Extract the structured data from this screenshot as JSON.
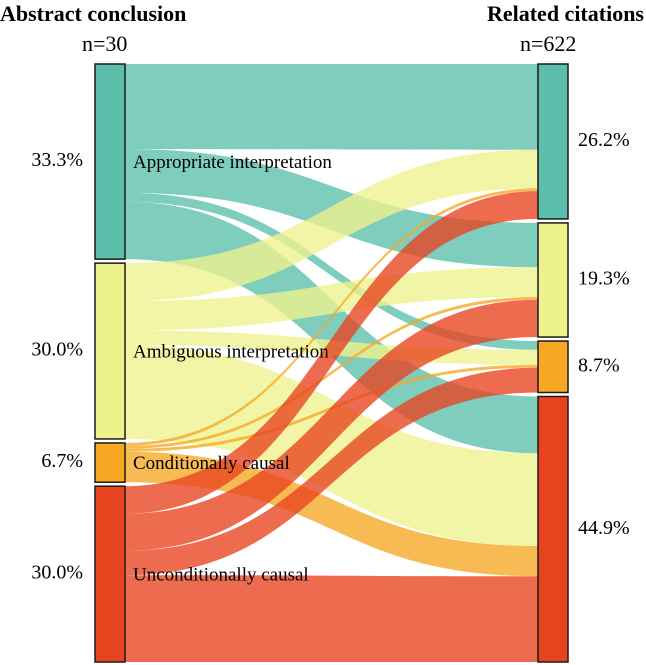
{
  "chart_data": {
    "type": "sankey",
    "left_title": "Abstract conclusion",
    "left_n": "n=30",
    "right_title": "Related citations",
    "right_n": "n=622",
    "categories": [
      "Appropriate interpretation",
      "Ambiguous interpretation",
      "Conditionally causal",
      "Unconditionally causal"
    ],
    "colors": [
      "#5bbfab",
      "#eef28c",
      "#f6a822",
      "#e8431f"
    ],
    "left_nodes": [
      {
        "name": "Appropriate interpretation",
        "share": 33.3,
        "label": "33.3%"
      },
      {
        "name": "Ambiguous interpretation",
        "share": 30.0,
        "label": "30.0%"
      },
      {
        "name": "Conditionally causal",
        "share": 6.7,
        "label": "6.7%"
      },
      {
        "name": "Unconditionally causal",
        "share": 30.0,
        "label": "30.0%"
      }
    ],
    "right_nodes": [
      {
        "name": "Appropriate interpretation",
        "share": 26.2,
        "label": "26.2%"
      },
      {
        "name": "Ambiguous interpretation",
        "share": 19.3,
        "label": "19.3%"
      },
      {
        "name": "Conditionally causal",
        "share": 8.7,
        "label": "8.7%"
      },
      {
        "name": "Unconditionally causal",
        "share": 44.9,
        "label": "44.9%"
      }
    ],
    "flows": [
      {
        "source": 0,
        "target": 0,
        "value": 0.145
      },
      {
        "source": 0,
        "target": 1,
        "value": 0.075
      },
      {
        "source": 0,
        "target": 2,
        "value": 0.015
      },
      {
        "source": 0,
        "target": 3,
        "value": 0.098
      },
      {
        "source": 1,
        "target": 0,
        "value": 0.065
      },
      {
        "source": 1,
        "target": 1,
        "value": 0.05
      },
      {
        "source": 1,
        "target": 2,
        "value": 0.025
      },
      {
        "source": 1,
        "target": 3,
        "value": 0.16
      },
      {
        "source": 2,
        "target": 0,
        "value": 0.005
      },
      {
        "source": 2,
        "target": 1,
        "value": 0.005
      },
      {
        "source": 2,
        "target": 2,
        "value": 0.005
      },
      {
        "source": 2,
        "target": 3,
        "value": 0.052
      },
      {
        "source": 3,
        "target": 0,
        "value": 0.047
      },
      {
        "source": 3,
        "target": 1,
        "value": 0.063
      },
      {
        "source": 3,
        "target": 2,
        "value": 0.042
      },
      {
        "source": 3,
        "target": 3,
        "value": 0.148
      }
    ]
  }
}
